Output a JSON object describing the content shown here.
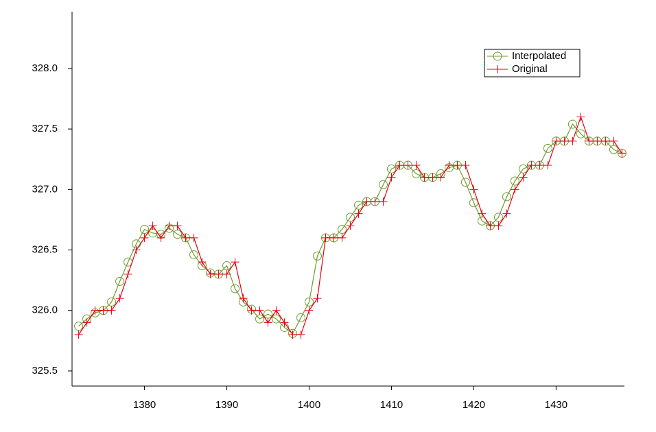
{
  "chart_data": {
    "type": "line",
    "x": [
      1372,
      1373,
      1374,
      1375,
      1376,
      1377,
      1378,
      1379,
      1380,
      1381,
      1382,
      1383,
      1384,
      1385,
      1386,
      1387,
      1388,
      1389,
      1390,
      1391,
      1392,
      1393,
      1394,
      1395,
      1396,
      1397,
      1398,
      1399,
      1400,
      1401,
      1402,
      1403,
      1404,
      1405,
      1406,
      1407,
      1408,
      1409,
      1410,
      1411,
      1412,
      1413,
      1414,
      1415,
      1416,
      1417,
      1418,
      1419,
      1420,
      1421,
      1422,
      1423,
      1424,
      1425,
      1426,
      1427,
      1428,
      1429,
      1430,
      1431,
      1432,
      1433,
      1434,
      1435,
      1436,
      1437,
      1438
    ],
    "series": [
      {
        "name": "Interpolated",
        "color": "#6f9a2e",
        "marker": "circle",
        "values": [
          325.87,
          325.93,
          325.98,
          326.0,
          326.07,
          326.24,
          326.4,
          326.55,
          326.67,
          326.64,
          326.63,
          326.68,
          326.63,
          326.6,
          326.46,
          326.37,
          326.31,
          326.3,
          326.37,
          326.18,
          326.07,
          326.01,
          325.93,
          325.97,
          325.93,
          325.86,
          325.81,
          325.94,
          326.07,
          326.45,
          326.6,
          326.6,
          326.67,
          326.77,
          326.87,
          326.9,
          326.9,
          327.04,
          327.17,
          327.2,
          327.2,
          327.13,
          327.1,
          327.1,
          327.13,
          327.18,
          327.2,
          327.06,
          326.89,
          326.74,
          326.7,
          326.77,
          326.94,
          327.07,
          327.17,
          327.2,
          327.2,
          327.34,
          327.4,
          327.4,
          327.54,
          327.46,
          327.4,
          327.4,
          327.4,
          327.33,
          327.3
        ]
      },
      {
        "name": "Original",
        "color": "#e3000f",
        "marker": "plus",
        "values": [
          325.8,
          325.9,
          326.0,
          326.0,
          326.0,
          326.1,
          326.3,
          326.5,
          326.6,
          326.7,
          326.6,
          326.7,
          326.7,
          326.6,
          326.6,
          326.4,
          326.3,
          326.3,
          326.3,
          326.4,
          326.1,
          326.0,
          326.0,
          325.9,
          326.0,
          325.9,
          325.8,
          325.8,
          326.0,
          326.1,
          326.6,
          326.6,
          326.6,
          326.7,
          326.8,
          326.9,
          326.9,
          326.9,
          327.1,
          327.2,
          327.2,
          327.2,
          327.1,
          327.1,
          327.1,
          327.2,
          327.2,
          327.2,
          327.0,
          326.8,
          326.7,
          326.7,
          326.8,
          327.0,
          327.1,
          327.2,
          327.2,
          327.2,
          327.4,
          327.4,
          327.4,
          327.6,
          327.4,
          327.4,
          327.4,
          327.4,
          327.3
        ]
      }
    ],
    "xlim": [
      1371.2,
      1438.3
    ],
    "xticks": [
      1380,
      1390,
      1400,
      1410,
      1420,
      1430
    ],
    "ylim": [
      325.375,
      328.47
    ],
    "yticks": [
      325.5,
      {
        "value": 326,
        "label": "326.0"
      },
      326.5,
      {
        "value": 327,
        "label": "327.0"
      },
      327.5,
      {
        "value": 328,
        "label": "328.0"
      }
    ],
    "legend": "upper right"
  }
}
